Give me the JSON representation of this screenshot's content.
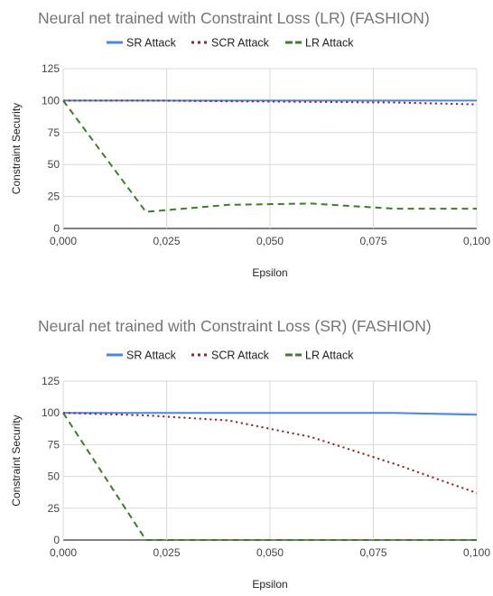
{
  "chart_data": [
    {
      "type": "line",
      "title": "Neural net trained with Constraint Loss (LR) (FASHION)",
      "xlabel": "Epsilon",
      "ylabel": "Constraint Security",
      "x": [
        0.0,
        0.02,
        0.04,
        0.06,
        0.08,
        0.1
      ],
      "xticks": [
        "0,000",
        "0,025",
        "0,050",
        "0,075",
        "0,100"
      ],
      "xtick_values": [
        0.0,
        0.025,
        0.05,
        0.075,
        0.1
      ],
      "yticks": [
        "0",
        "25",
        "50",
        "75",
        "100",
        "125"
      ],
      "xlim": [
        0,
        0.1
      ],
      "ylim": [
        0,
        125
      ],
      "grid": true,
      "legend_position": "top",
      "series": [
        {
          "name": "SR Attack",
          "values": [
            100,
            100,
            100,
            100,
            100,
            100
          ],
          "color": "#4a86e8",
          "style": "solid"
        },
        {
          "name": "SCR Attack",
          "values": [
            100,
            100,
            99.5,
            99,
            98.5,
            97
          ],
          "color": "#8b2a2a",
          "style": "dotted"
        },
        {
          "name": "LR Attack",
          "values": [
            100,
            13,
            18.5,
            19.5,
            15.5,
            15.5
          ],
          "color": "#3d7d2a",
          "style": "dashed"
        }
      ]
    },
    {
      "type": "line",
      "title": "Neural net trained with Constraint Loss (SR) (FASHION)",
      "xlabel": "Epsilon",
      "ylabel": "Constraint Security",
      "x": [
        0.0,
        0.02,
        0.04,
        0.06,
        0.08,
        0.1
      ],
      "xticks": [
        "0,000",
        "0,025",
        "0,050",
        "0,075",
        "0,100"
      ],
      "xtick_values": [
        0.0,
        0.025,
        0.05,
        0.075,
        0.1
      ],
      "yticks": [
        "0",
        "25",
        "50",
        "75",
        "100",
        "125"
      ],
      "xlim": [
        0,
        0.1
      ],
      "ylim": [
        0,
        125
      ],
      "grid": true,
      "legend_position": "top",
      "series": [
        {
          "name": "SR Attack",
          "values": [
            100,
            100,
            100,
            100,
            100,
            98.5
          ],
          "color": "#4a86e8",
          "style": "solid"
        },
        {
          "name": "SCR Attack",
          "values": [
            100,
            98,
            94,
            81,
            60,
            37
          ],
          "color": "#8b2a2a",
          "style": "dotted"
        },
        {
          "name": "LR Attack",
          "values": [
            100,
            0,
            0,
            0,
            0,
            0
          ],
          "color": "#3d7d2a",
          "style": "dashed"
        }
      ]
    }
  ]
}
